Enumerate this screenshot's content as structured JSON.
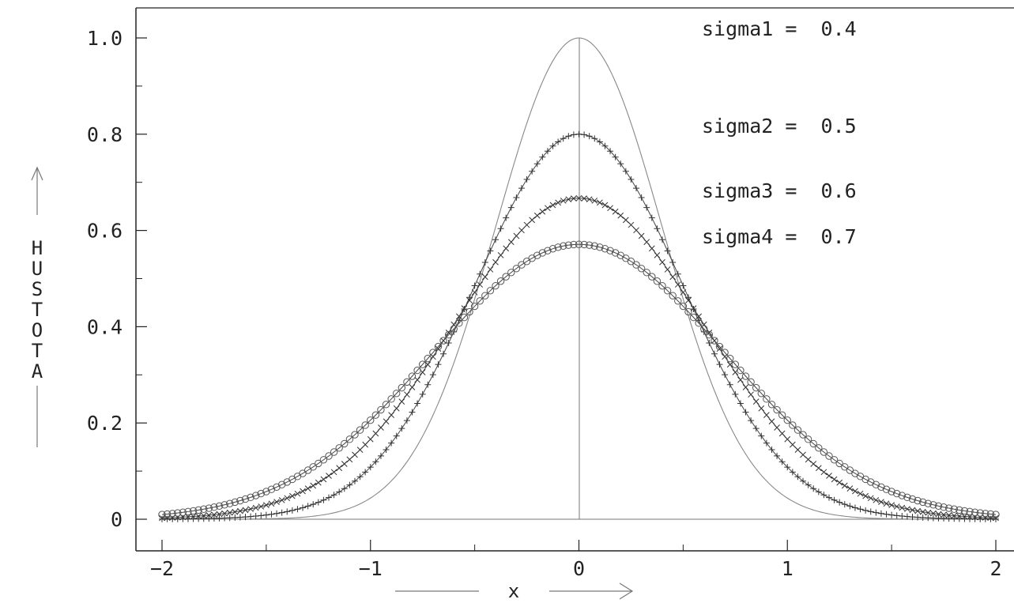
{
  "colors": {
    "background": "#ffffff",
    "ink": "#222222",
    "curve": "#666666"
  },
  "chart_data": {
    "type": "line",
    "title": "",
    "xlabel": "x",
    "ylabel": "HUSTOTA",
    "xlim": [
      -2,
      2
    ],
    "ylim": [
      0,
      1.0
    ],
    "x_ticks": [
      "-2",
      "-1",
      "0",
      "1",
      "2"
    ],
    "y_ticks": [
      "0",
      "0.2",
      "0.4",
      "0.6",
      "0.8",
      "1.0"
    ],
    "series": [
      {
        "name": "sigma1",
        "sigma": 0.4,
        "peak": 1.0,
        "marker": "line",
        "legend": "sigma1 =  0.4"
      },
      {
        "name": "sigma2",
        "sigma": 0.5,
        "peak": 0.8,
        "marker": "plus",
        "legend": "sigma2 =  0.5"
      },
      {
        "name": "sigma3",
        "sigma": 0.6,
        "peak": 0.667,
        "marker": "cross",
        "legend": "sigma3 =  0.6"
      },
      {
        "name": "sigma4",
        "sigma": 0.7,
        "peak": 0.571,
        "marker": "circle",
        "legend": "sigma4 =  0.7"
      }
    ],
    "grid": false,
    "legend_position": "top-right"
  }
}
